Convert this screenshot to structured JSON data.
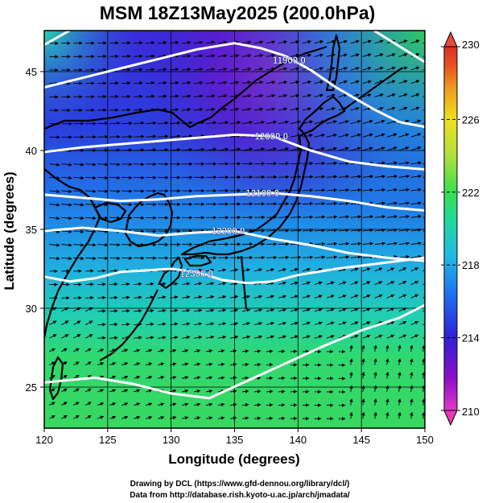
{
  "title": "MSM 18Z13May2025 (200.0hPa)",
  "xlabel": "Longitude (degrees)",
  "ylabel": "Latitude  (degrees)",
  "credits": [
    "Drawing by DCL (https://www.gfd-dennou.org/library/dcl/)",
    "Data from http://database.rish.kyoto-u.ac.jp/arch/jmadata/"
  ],
  "map": {
    "lon_range": [
      120,
      150
    ],
    "lat_range": [
      22.4,
      47.6
    ],
    "lon_ticks": [
      "120",
      "125",
      "130",
      "135",
      "140",
      "145",
      "150"
    ],
    "lat_ticks": [
      "25",
      "30",
      "35",
      "40",
      "45"
    ],
    "contours": [
      {
        "label": "11900.0",
        "points": [
          [
            120,
            44.0
          ],
          [
            123,
            44.6
          ],
          [
            126,
            45.2
          ],
          [
            129,
            45.8
          ],
          [
            132,
            46.4
          ],
          [
            135,
            46.8
          ],
          [
            137,
            46.5
          ],
          [
            139,
            46.0
          ],
          [
            141,
            45.1
          ],
          [
            143,
            44.0
          ],
          [
            146,
            42.6
          ],
          [
            148,
            41.8
          ],
          [
            150,
            41.5
          ]
        ],
        "label_at": [
          139.3,
          45.7
        ]
      },
      {
        "label": "",
        "points": [
          [
            120,
            46.7
          ],
          [
            122,
            47.6
          ]
        ],
        "label_at": null
      },
      {
        "label": "",
        "points": [
          [
            146,
            47.6
          ],
          [
            148,
            46.6
          ],
          [
            150,
            45.6
          ]
        ],
        "label_at": null
      },
      {
        "label": "12000.0",
        "points": [
          [
            120,
            39.9
          ],
          [
            123,
            40.2
          ],
          [
            126,
            40.4
          ],
          [
            129,
            40.6
          ],
          [
            132,
            40.8
          ],
          [
            135,
            41.0
          ],
          [
            138,
            40.9
          ],
          [
            141,
            40.0
          ],
          [
            144,
            39.3
          ],
          [
            147,
            39.0
          ],
          [
            150,
            38.8
          ]
        ],
        "label_at": [
          137.9,
          40.9
        ]
      },
      {
        "label": "12100.0",
        "points": [
          [
            120,
            37.2
          ],
          [
            123,
            37.0
          ],
          [
            126,
            36.8
          ],
          [
            129,
            36.9
          ],
          [
            132,
            37.1
          ],
          [
            135,
            37.2
          ],
          [
            138,
            37.3
          ],
          [
            141,
            37.1
          ],
          [
            144,
            36.8
          ],
          [
            147,
            36.4
          ],
          [
            150,
            36.2
          ]
        ],
        "label_at": [
          137.2,
          37.3
        ]
      },
      {
        "label": "12200.0",
        "points": [
          [
            120,
            34.9
          ],
          [
            123,
            35.1
          ],
          [
            126,
            34.9
          ],
          [
            129,
            34.6
          ],
          [
            132,
            34.8
          ],
          [
            135,
            34.9
          ],
          [
            138,
            34.4
          ],
          [
            141,
            34.0
          ],
          [
            144,
            33.5
          ],
          [
            147,
            33.2
          ],
          [
            150,
            33.0
          ]
        ],
        "label_at": [
          134.5,
          34.9
        ]
      },
      {
        "label": "12300.0",
        "points": [
          [
            120,
            32.0
          ],
          [
            122,
            31.7
          ],
          [
            124,
            31.9
          ],
          [
            126,
            32.3
          ],
          [
            128,
            32.4
          ],
          [
            130,
            32.5
          ],
          [
            132,
            32.3
          ],
          [
            134,
            31.8
          ],
          [
            136,
            31.6
          ],
          [
            138,
            31.7
          ],
          [
            140,
            32.1
          ],
          [
            143,
            32.5
          ],
          [
            146,
            32.8
          ],
          [
            150,
            33.2
          ]
        ],
        "label_at": [
          132.0,
          32.2
        ]
      },
      {
        "label": "",
        "points": [
          [
            120,
            25.3
          ],
          [
            124,
            25.6
          ],
          [
            127,
            25.2
          ],
          [
            130,
            24.6
          ],
          [
            133,
            24.3
          ],
          [
            136,
            25.4
          ],
          [
            139,
            26.5
          ],
          [
            142,
            27.6
          ],
          [
            145,
            28.6
          ],
          [
            148,
            29.4
          ],
          [
            150,
            30.2
          ]
        ],
        "label_at": null
      }
    ]
  },
  "colorbar": {
    "ticks": [
      "210",
      "214",
      "218",
      "222",
      "226",
      "230"
    ],
    "range": [
      210,
      230
    ],
    "colors": [
      "#e238c8",
      "#8a10c8",
      "#3020d8",
      "#2070f0",
      "#20c0e8",
      "#20d890",
      "#38e050",
      "#b0e040",
      "#f0e020",
      "#f0a020",
      "#e85020",
      "#d83028"
    ]
  }
}
